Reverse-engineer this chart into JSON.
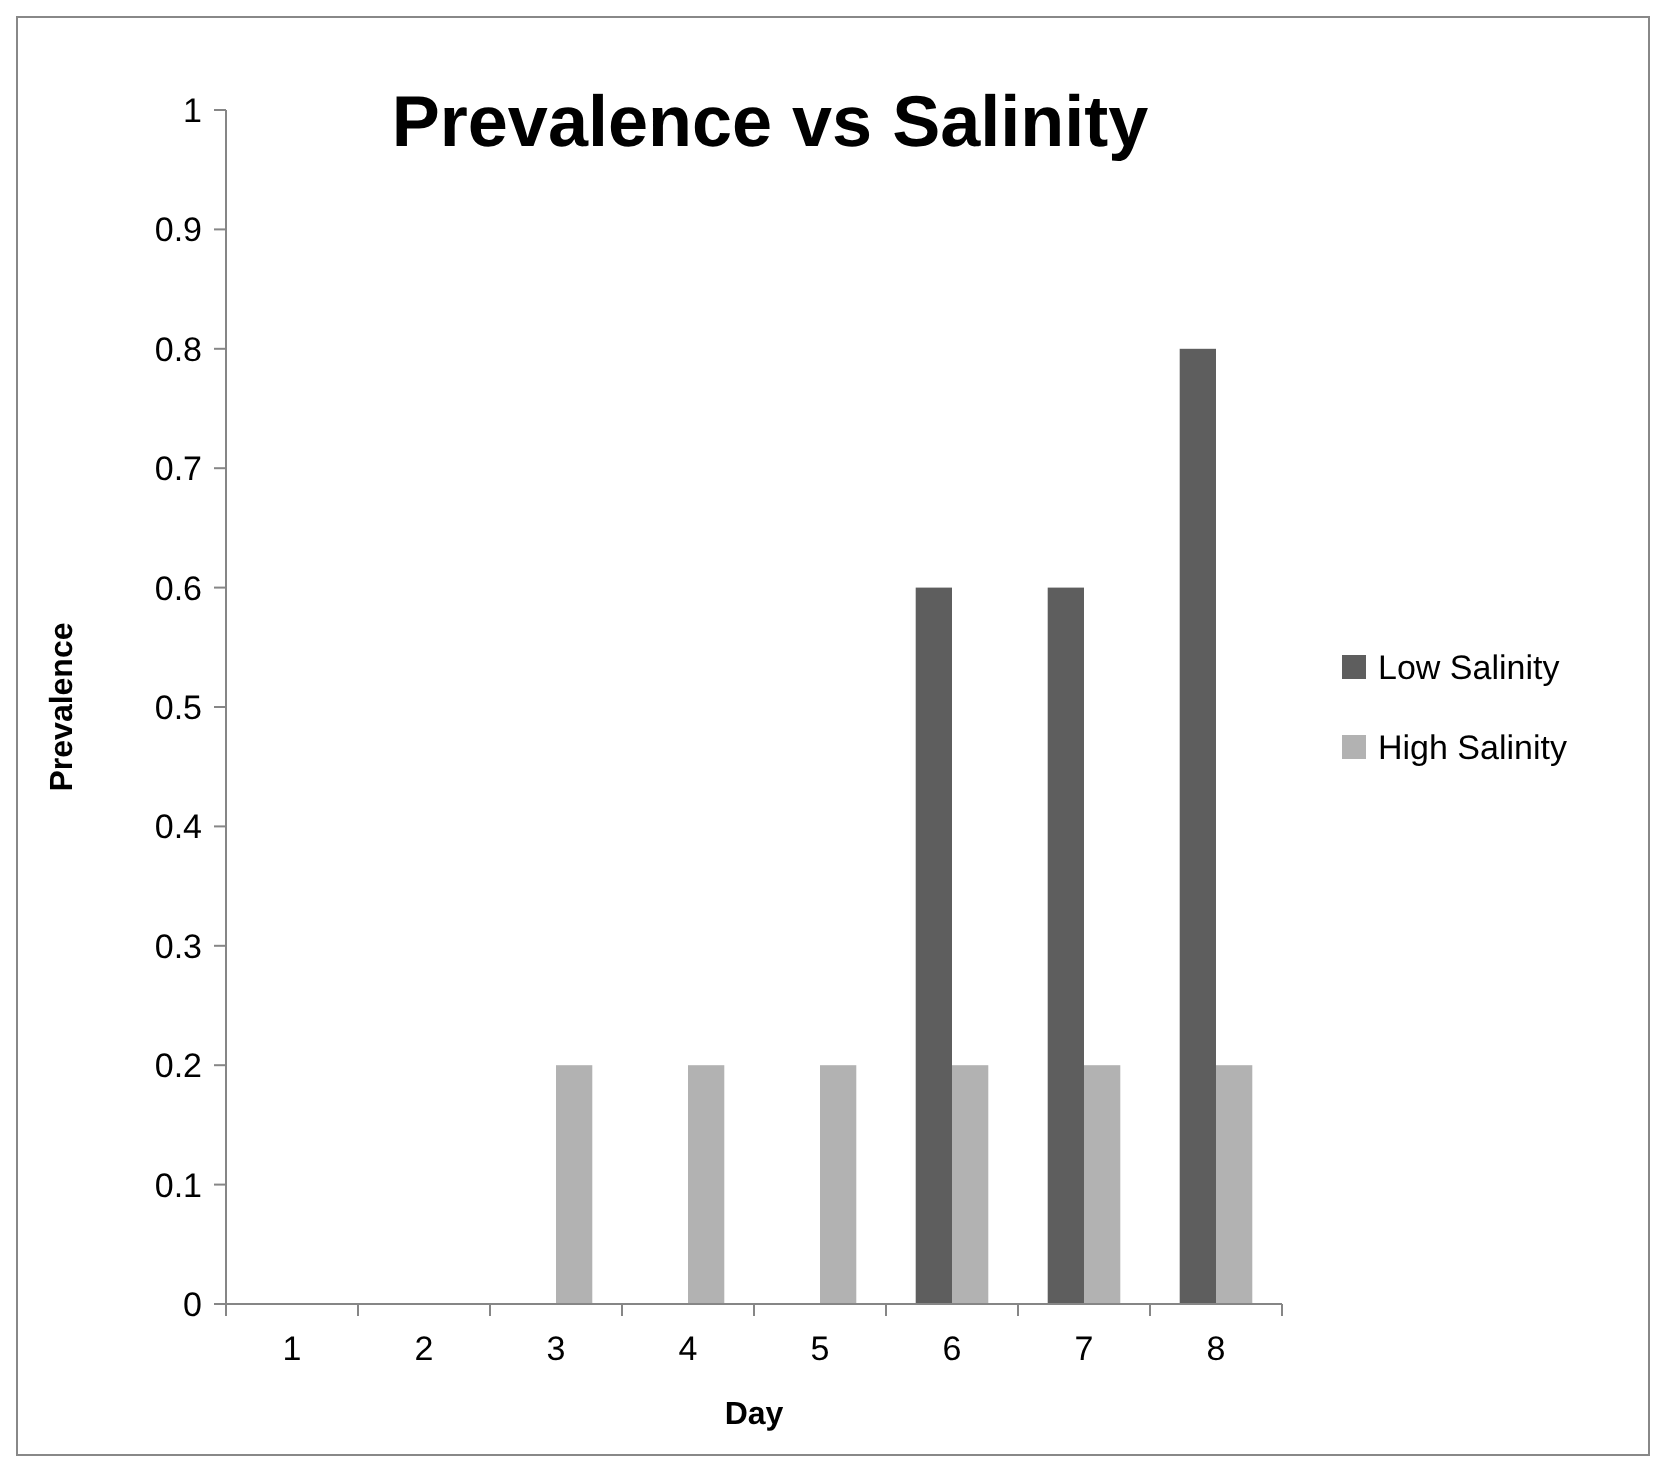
{
  "chart_data": {
    "type": "bar",
    "title": "Prevalence vs Salinity",
    "xlabel": "Day",
    "ylabel": "Prevalence",
    "categories": [
      "1",
      "2",
      "3",
      "4",
      "5",
      "6",
      "7",
      "8"
    ],
    "series": [
      {
        "name": "Low Salinity",
        "color": "#5e5e5e",
        "values": [
          0,
          0,
          0,
          0,
          0,
          0.6,
          0.6,
          0.8
        ]
      },
      {
        "name": "High Salinity",
        "color": "#b2b2b2",
        "values": [
          0,
          0,
          0.2,
          0.2,
          0.2,
          0.2,
          0.2,
          0.2
        ]
      }
    ],
    "ylim": [
      0,
      1
    ],
    "yticks": [
      0,
      0.1,
      0.2,
      0.3,
      0.4,
      0.5,
      0.6,
      0.7,
      0.8,
      0.9,
      1
    ],
    "grid": false,
    "legend": "right"
  }
}
